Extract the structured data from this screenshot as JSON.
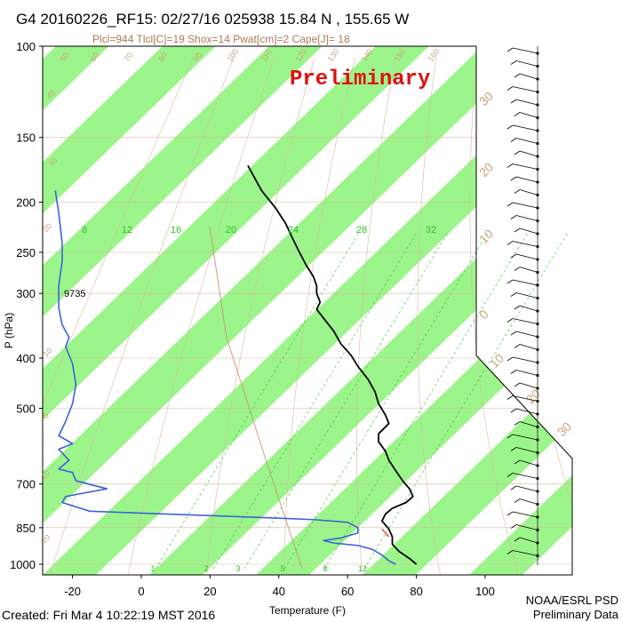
{
  "header": {
    "title": "G4 20160226_RF15: 02/27/16 025938  15.84 N , 155.65 W",
    "subtitle": "Plcl=944 Tlcl[C]=19 Shox=14 Pwat[cm]=2 Cape[J]= 18"
  },
  "watermark": "Preliminary",
  "footer": {
    "created": "Created: Fri Mar  4 10:22:19 MST 2016",
    "org": "NOAA/ESRL PSD",
    "note": "Preliminary Data"
  },
  "colors": {
    "band_green": "#9cf58a",
    "temperature": "#000000",
    "dewpoint": "#3a63d8",
    "isotherm_grid": "#d8b8a0",
    "dry_adiabat": "#d8b8a0",
    "mixing_ratio": "#2fbf2f",
    "watermark": "#e01010",
    "parcel": "#d09070"
  },
  "chart_data": {
    "type": "skew-t",
    "xlabel": "Temperature (F)",
    "ylabel": "P (hPa)",
    "x_ticks": [
      -20,
      0,
      20,
      40,
      60,
      80,
      100
    ],
    "y_ticks": [
      100,
      150,
      200,
      250,
      300,
      400,
      500,
      700,
      850,
      1000
    ],
    "y_scale": "log",
    "ylim": [
      1000,
      100
    ],
    "annotation_height": {
      "text": "9735",
      "p": 300
    },
    "mixing_ratio_labels": [
      "8",
      "12",
      "16",
      "20",
      "24",
      "28",
      "32"
    ],
    "mixing_ratio_low_labels": [
      "1",
      "2",
      "3",
      "5",
      "8",
      "12"
    ],
    "dry_adiabat_labels": [
      "50",
      "60",
      "70",
      "80",
      "90",
      "100",
      "110",
      "120",
      "130",
      "140",
      "150",
      "160"
    ],
    "right_labels": [
      "30",
      "20",
      "10",
      "0",
      "10",
      "20",
      "30"
    ],
    "left_labels": [
      "40",
      "30",
      "20",
      "10",
      "0",
      "10",
      "20",
      "30"
    ],
    "temperature_series": {
      "name": "Temperature",
      "points": [
        [
          31,
          170
        ],
        [
          35,
          190
        ],
        [
          39,
          205
        ],
        [
          42,
          220
        ],
        [
          44,
          235
        ],
        [
          46,
          250
        ],
        [
          48,
          265
        ],
        [
          50,
          278
        ],
        [
          51,
          290
        ],
        [
          51,
          300
        ],
        [
          52,
          312
        ],
        [
          51,
          322
        ],
        [
          53,
          335
        ],
        [
          56,
          355
        ],
        [
          58,
          375
        ],
        [
          61,
          395
        ],
        [
          63,
          415
        ],
        [
          66,
          440
        ],
        [
          68,
          465
        ],
        [
          69,
          490
        ],
        [
          71,
          515
        ],
        [
          72,
          535
        ],
        [
          69,
          560
        ],
        [
          69,
          580
        ],
        [
          71,
          605
        ],
        [
          72,
          630
        ],
        [
          74,
          660
        ],
        [
          76,
          690
        ],
        [
          78,
          715
        ],
        [
          79,
          740
        ],
        [
          77,
          760
        ],
        [
          73,
          780
        ],
        [
          71,
          800
        ],
        [
          70,
          825
        ],
        [
          72,
          855
        ],
        [
          73,
          885
        ],
        [
          73,
          915
        ],
        [
          75,
          945
        ],
        [
          78,
          975
        ],
        [
          80,
          1000
        ]
      ]
    },
    "dewpoint_series": {
      "name": "Dewpoint",
      "points": [
        [
          -25,
          190
        ],
        [
          -24,
          210
        ],
        [
          -23,
          240
        ],
        [
          -23,
          260
        ],
        [
          -24,
          290
        ],
        [
          -24,
          320
        ],
        [
          -23,
          345
        ],
        [
          -21,
          365
        ],
        [
          -22,
          380
        ],
        [
          -20,
          410
        ],
        [
          -19,
          450
        ],
        [
          -20,
          490
        ],
        [
          -22,
          530
        ],
        [
          -24,
          565
        ],
        [
          -20,
          585
        ],
        [
          -24,
          600
        ],
        [
          -21,
          630
        ],
        [
          -24,
          655
        ],
        [
          -20,
          665
        ],
        [
          -19,
          690
        ],
        [
          -10,
          715
        ],
        [
          -22,
          740
        ],
        [
          -23,
          760
        ],
        [
          -15,
          790
        ],
        [
          30,
          810
        ],
        [
          40,
          815
        ],
        [
          50,
          820
        ],
        [
          60,
          830
        ],
        [
          63,
          850
        ],
        [
          63,
          870
        ],
        [
          58,
          890
        ],
        [
          53,
          900
        ],
        [
          56,
          910
        ],
        [
          63,
          920
        ],
        [
          67,
          935
        ],
        [
          70,
          960
        ],
        [
          72,
          985
        ],
        [
          74,
          1000
        ]
      ]
    },
    "parcel_series": {
      "points": [
        [
          70,
          855
        ],
        [
          71,
          870
        ],
        [
          72,
          885
        ]
      ]
    },
    "wind_barbs_count": 40
  }
}
